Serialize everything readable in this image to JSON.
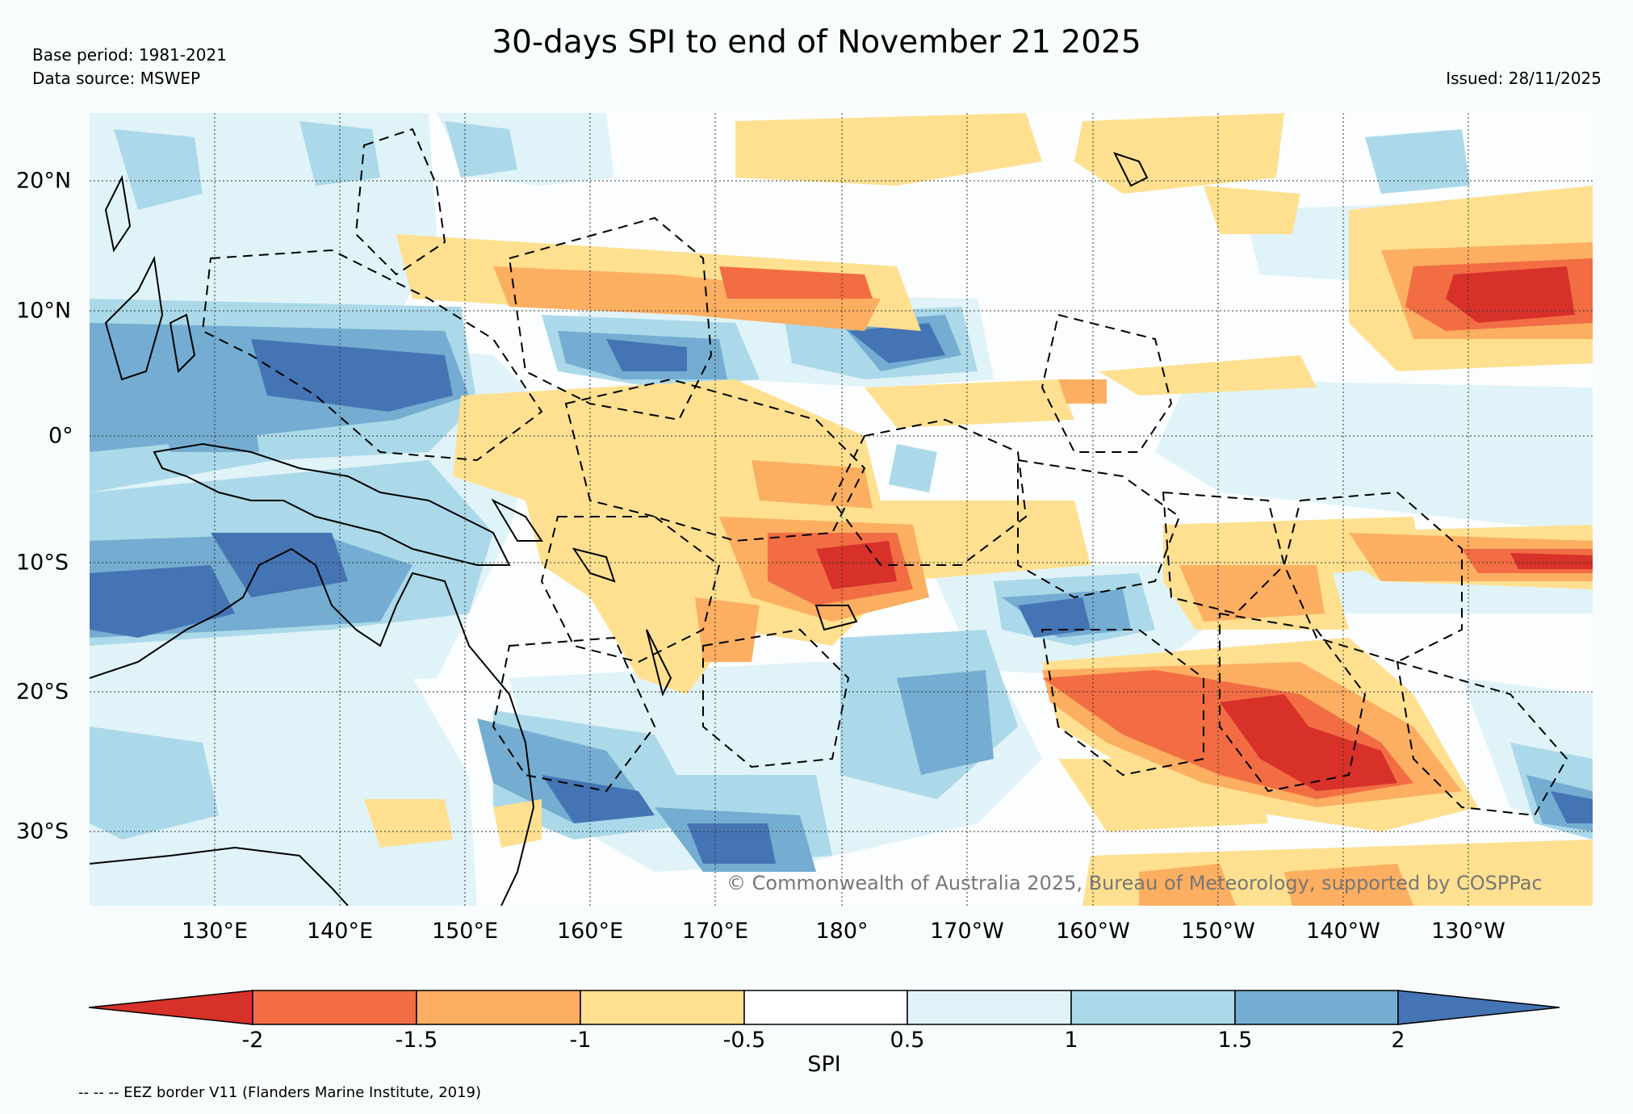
{
  "header": {
    "title": "30-days SPI to end of November 21 2025",
    "base_period": "Base period: 1981-2021",
    "data_source": "Data source: MSWEP",
    "issued": "Issued: 28/11/2025"
  },
  "map": {
    "longitude_labels": [
      "130°E",
      "140°E",
      "150°E",
      "160°E",
      "170°E",
      "180°",
      "170°W",
      "160°W",
      "150°W",
      "140°W",
      "130°W"
    ],
    "latitude_labels": [
      "20°N",
      "10°N",
      "0°",
      "10°S",
      "20°S",
      "30°S"
    ],
    "copyright": "© Commonwealth of Australia 2025, Bureau of Meteorology, supported by COSPPac"
  },
  "colorbar": {
    "title": "SPI",
    "ticks": [
      "-2",
      "-1.5",
      "-1",
      "-0.5",
      "0.5",
      "1",
      "1.5",
      "2"
    ],
    "colors": [
      "#d7312a",
      "#f26d43",
      "#fcae61",
      "#fee090",
      "#ffffff",
      "#e0f3f8",
      "#abd9e9",
      "#74add1",
      "#4574b4"
    ]
  },
  "footer": {
    "eez_note": "-- -- -- EEZ border V11 (Flanders Marine Institute, 2019)"
  }
}
